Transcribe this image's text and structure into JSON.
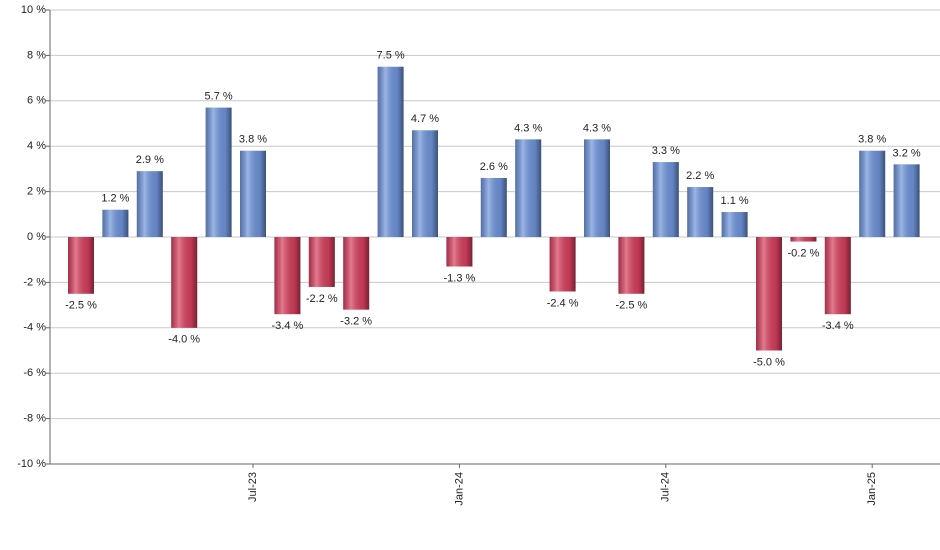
{
  "chart_data": {
    "type": "bar",
    "categories": [
      null,
      null,
      null,
      null,
      null,
      "Jul-23",
      null,
      null,
      null,
      null,
      null,
      "Jan-24",
      null,
      null,
      null,
      null,
      null,
      "Jul-24",
      null,
      null,
      null,
      null,
      null,
      "Jan-25",
      null
    ],
    "values": [
      -2.5,
      1.2,
      2.9,
      -4.0,
      5.7,
      3.8,
      -3.4,
      -2.2,
      -3.2,
      7.5,
      4.7,
      -1.3,
      2.6,
      4.3,
      -2.4,
      4.3,
      -2.5,
      3.3,
      2.2,
      1.1,
      -5.0,
      -0.2,
      -3.4,
      3.8,
      3.2
    ],
    "value_labels": [
      "-2.5 %",
      "1.2 %",
      "2.9 %",
      "-4.0 %",
      "5.7 %",
      "3.8 %",
      "-3.4 %",
      "-2.2 %",
      "-3.2 %",
      "7.5 %",
      "4.7 %",
      "-1.3 %",
      "2.6 %",
      "4.3 %",
      "-2.4 %",
      "4.3 %",
      "-2.5 %",
      "3.3 %",
      "2.2 %",
      "1.1 %",
      "-5.0 %",
      "-0.2 %",
      "-3.4 %",
      "3.8 %",
      "3.2 %"
    ],
    "color": "#6f95dc",
    "negative_color": "#d8405f",
    "ylim": [
      -10,
      10
    ],
    "yticks": [
      {
        "value": -10,
        "label": "-10 %"
      },
      {
        "value": -8,
        "label": "-8 %"
      },
      {
        "value": -6,
        "label": "-6 %"
      },
      {
        "value": -4,
        "label": "-4 %"
      },
      {
        "value": -2,
        "label": "-2 %"
      },
      {
        "value": 0,
        "label": "0 %"
      },
      {
        "value": 2,
        "label": "2 %"
      },
      {
        "value": 4,
        "label": "4 %"
      },
      {
        "value": 6,
        "label": "6 %"
      },
      {
        "value": 8,
        "label": "8 %"
      },
      {
        "value": 10,
        "label": "10 %"
      }
    ],
    "grid": true
  }
}
